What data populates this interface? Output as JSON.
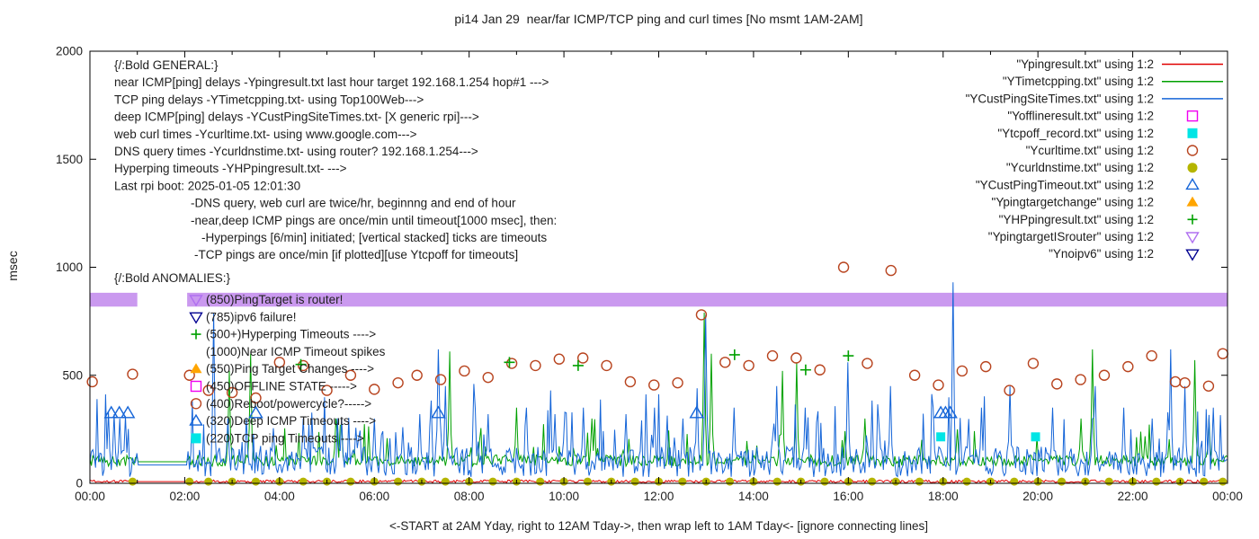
{
  "title": "pi14 Jan 29  near/far ICMP/TCP ping and curl times [No msmt 1AM-2AM]",
  "axes": {
    "ylabel": "msec",
    "xlabel": "<-START at 2AM Yday, right to 12AM Tday->, then wrap left to 1AM Tday<- [ignore connecting lines]",
    "xticks": [
      {
        "h": 0,
        "label": "00:00"
      },
      {
        "h": 2,
        "label": "02:00"
      },
      {
        "h": 4,
        "label": "04:00"
      },
      {
        "h": 6,
        "label": "06:00"
      },
      {
        "h": 8,
        "label": "08:00"
      },
      {
        "h": 10,
        "label": "10:00"
      },
      {
        "h": 12,
        "label": "12:00"
      },
      {
        "h": 14,
        "label": "14:00"
      },
      {
        "h": 16,
        "label": "16:00"
      },
      {
        "h": 18,
        "label": "18:00"
      },
      {
        "h": 20,
        "label": "20:00"
      },
      {
        "h": 22,
        "label": "22:00"
      },
      {
        "h": 24,
        "label": "00:00"
      }
    ],
    "yticks": [
      0,
      500,
      1000,
      1500,
      2000
    ]
  },
  "legend": [
    {
      "label": "\"Ypingresult.txt\" using 1:2",
      "kind": "line",
      "color": "#e00000"
    },
    {
      "label": "\"YTimetcpping.txt\" using 1:2",
      "kind": "line",
      "color": "#00a000"
    },
    {
      "label": "\"YCustPingSiteTimes.txt\" using 1:2",
      "kind": "line",
      "color": "#1565d8"
    },
    {
      "label": "\"Yofflineresult.txt\" using 1:2",
      "kind": "marker",
      "marker": "square-open",
      "color": "#f000f0"
    },
    {
      "label": "\"Ytcpoff_record.txt\" using 1:2",
      "kind": "marker",
      "marker": "square-filled",
      "color": "#00e5e5"
    },
    {
      "label": "\"Ycurltime.txt\" using 1:2",
      "kind": "marker",
      "marker": "circle-open",
      "color": "#b8441f"
    },
    {
      "label": "\"Ycurldnstime.txt\" using 1:2",
      "kind": "marker",
      "marker": "circle-filled",
      "color": "#b5b500"
    },
    {
      "label": "\"YCustPingTimeout.txt\" using 1:2",
      "kind": "marker",
      "marker": "tri-up-open",
      "color": "#1565d8"
    },
    {
      "label": "\"Ypingtargetchange\" using 1:2",
      "kind": "marker",
      "marker": "tri-up-filled",
      "color": "#ffa500"
    },
    {
      "label": "\"YHPpingresult.txt\" using 1:2",
      "kind": "marker",
      "marker": "plus",
      "color": "#00a000"
    },
    {
      "label": "\"YpingtargetISrouter\" using 1:2",
      "kind": "marker",
      "marker": "tri-down-open",
      "color": "#b070f0"
    },
    {
      "label": "\"Ynoipv6\" using 1:2",
      "kind": "marker",
      "marker": "tri-down-open",
      "color": "#000090"
    }
  ],
  "general": {
    "header": "{/:Bold GENERAL:}",
    "lines": [
      {
        "t": "near ICMP[ping] delays -Ypingresult.txt last hour target 192.168.1.254 hop#1 --->",
        "i": 0
      },
      {
        "t": "TCP ping delays -YTimetcpping.txt- using Top100Web--->",
        "i": 0
      },
      {
        "t": "deep ICMP[ping] delays -YCustPingSiteTimes.txt- [X generic rpi]--->",
        "i": 0
      },
      {
        "t": "web curl times -Ycurltime.txt- using www.google.com--->",
        "i": 0
      },
      {
        "t": "DNS query times -Ycurldnstime.txt- using router? 192.168.1.254--->",
        "i": 0
      },
      {
        "t": "Hyperping timeouts -YHPpingresult.txt- --->",
        "i": 0
      },
      {
        "t": "Last rpi boot: 2025-01-05 12:01:30",
        "i": 0
      },
      {
        "t": "-DNS query, web curl are twice/hr, beginnng and end of hour",
        "i": 85
      },
      {
        "t": "-near,deep ICMP pings are once/min until timeout[1000 msec], then:",
        "i": 85
      },
      {
        "t": "-Hyperpings [6/min] initiated; [vertical stacked] ticks are timeouts",
        "i": 97
      },
      {
        "t": "-TCP pings are once/min [if plotted][use Ytcpoff for timeouts]",
        "i": 89
      }
    ]
  },
  "anomalies": {
    "header": "{/:Bold ANOMALIES:}",
    "items": [
      {
        "t": "(850)PingTarget is router!",
        "marker": "tri-down-open",
        "color": "#b070f0"
      },
      {
        "t": "(785)ipv6 failure!",
        "marker": "tri-down-open",
        "color": "#000090"
      },
      {
        "t": "(500+)Hyperping Timeouts ---->",
        "marker": "plus",
        "color": "#00a000"
      },
      {
        "t": "(1000)Near ICMP Timeout spikes",
        "marker": "none",
        "color": "#202020"
      },
      {
        "t": "(550)Ping Target Changes ---->",
        "marker": "tri-up-filled",
        "color": "#ffa500"
      },
      {
        "t": "(450)OFFLINE STATE ----->",
        "marker": "square-open",
        "color": "#f000f0"
      },
      {
        "t": "(400)Reboot/powercycle?----->",
        "marker": "circle-open",
        "color": "#b8441f"
      },
      {
        "t": "(320)Deep ICMP Timeouts ---->",
        "marker": "tri-up-open",
        "color": "#1565d8"
      },
      {
        "t": "(220)TCP ping Timeouts ---->",
        "marker": "square-filled",
        "color": "#00e5e5"
      }
    ]
  },
  "chart_data": {
    "type": "line",
    "title": "pi14 Jan 29  near/far ICMP/TCP ping and curl times [No msmt 1AM-2AM]",
    "xlabel": "<-START at 2AM Yday, right to 12AM Tday->, then wrap left to 1AM Tday<- [ignore connecting lines]",
    "ylabel": "msec",
    "xlim": [
      0,
      24
    ],
    "ylim": [
      0,
      2000
    ],
    "grid": false,
    "legend_position": "top-right",
    "no_measurement_window_hours": [
      1.0,
      2.05
    ],
    "band": {
      "name": "YpingtargetISrouter",
      "y": 850,
      "thickness_msec": 64,
      "segments": [
        [
          0,
          1.0
        ],
        [
          2.05,
          24
        ]
      ],
      "color": "#c794ee"
    },
    "lines": [
      {
        "id": "Ypingresult",
        "color": "#e00000",
        "base": 8,
        "noise": 6,
        "spike_prob": 0,
        "spike_amp": 0,
        "spikes": []
      },
      {
        "id": "YTimetcpping",
        "color": "#00a000",
        "base": 100,
        "noise": 26,
        "spike_prob": 0.05,
        "spike_amp": 130,
        "spikes": [
          [
            2.95,
            520
          ],
          [
            3.4,
            600
          ],
          [
            5.2,
            300
          ],
          [
            7.6,
            610
          ],
          [
            9.0,
            350
          ],
          [
            10.6,
            300
          ],
          [
            12.95,
            790
          ],
          [
            13.1,
            600
          ],
          [
            14.6,
            520
          ],
          [
            14.9,
            560
          ],
          [
            16.35,
            300
          ],
          [
            18.3,
            250
          ],
          [
            20.9,
            300
          ],
          [
            21.15,
            620
          ],
          [
            23.3,
            570
          ],
          [
            23.6,
            300
          ]
        ]
      },
      {
        "id": "YCustPingSiteTimes",
        "color": "#1565d8",
        "base": 85,
        "noise": 70,
        "spike_prob": 0.1,
        "spike_amp": 220,
        "spikes": [
          [
            0.38,
            330
          ],
          [
            0.5,
            320
          ],
          [
            0.62,
            300
          ],
          [
            0.75,
            310
          ],
          [
            2.6,
            790
          ],
          [
            2.9,
            300
          ],
          [
            4.5,
            300
          ],
          [
            5.3,
            300
          ],
          [
            6.0,
            300
          ],
          [
            6.6,
            260
          ],
          [
            6.95,
            320
          ],
          [
            7.35,
            620
          ],
          [
            7.5,
            450
          ],
          [
            8.1,
            460
          ],
          [
            8.4,
            320
          ],
          [
            9.2,
            350
          ],
          [
            9.8,
            320
          ],
          [
            10.4,
            350
          ],
          [
            11.3,
            320
          ],
          [
            11.9,
            350
          ],
          [
            12.5,
            300
          ],
          [
            12.8,
            440
          ],
          [
            13.0,
            780
          ],
          [
            13.6,
            350
          ],
          [
            14.5,
            450
          ],
          [
            15.1,
            350
          ],
          [
            16.0,
            560
          ],
          [
            16.9,
            450
          ],
          [
            17.8,
            350
          ],
          [
            18.2,
            930
          ],
          [
            18.8,
            350
          ],
          [
            19.4,
            450
          ],
          [
            20.3,
            350
          ],
          [
            21.2,
            450
          ],
          [
            21.8,
            350
          ],
          [
            22.4,
            300
          ],
          [
            22.8,
            620
          ],
          [
            23.1,
            450
          ],
          [
            23.7,
            350
          ]
        ]
      }
    ],
    "scatter": [
      {
        "id": "Ycurltime",
        "marker": "circle-open",
        "color": "#b8441f",
        "size": 5.5,
        "points": [
          [
            0.05,
            470
          ],
          [
            0.9,
            505
          ],
          [
            2.1,
            500
          ],
          [
            2.5,
            430
          ],
          [
            3.0,
            420
          ],
          [
            3.5,
            395
          ],
          [
            4.0,
            560
          ],
          [
            4.5,
            545
          ],
          [
            5.0,
            430
          ],
          [
            5.5,
            500
          ],
          [
            6.0,
            435
          ],
          [
            6.5,
            465
          ],
          [
            6.9,
            500
          ],
          [
            7.4,
            480
          ],
          [
            7.9,
            520
          ],
          [
            8.4,
            490
          ],
          [
            8.9,
            555
          ],
          [
            9.4,
            545
          ],
          [
            9.9,
            575
          ],
          [
            10.4,
            580
          ],
          [
            10.9,
            545
          ],
          [
            11.4,
            470
          ],
          [
            11.9,
            455
          ],
          [
            12.4,
            465
          ],
          [
            12.9,
            780
          ],
          [
            13.4,
            560
          ],
          [
            13.9,
            545
          ],
          [
            14.4,
            590
          ],
          [
            14.9,
            580
          ],
          [
            15.4,
            525
          ],
          [
            15.9,
            1000
          ],
          [
            16.4,
            555
          ],
          [
            16.9,
            985
          ],
          [
            17.4,
            500
          ],
          [
            17.9,
            455
          ],
          [
            18.4,
            520
          ],
          [
            18.9,
            540
          ],
          [
            19.4,
            430
          ],
          [
            19.9,
            555
          ],
          [
            20.4,
            460
          ],
          [
            20.9,
            480
          ],
          [
            21.4,
            500
          ],
          [
            21.9,
            540
          ],
          [
            22.4,
            590
          ],
          [
            22.9,
            470
          ],
          [
            23.1,
            465
          ],
          [
            23.6,
            450
          ],
          [
            23.9,
            600
          ]
        ]
      },
      {
        "id": "Ycurldnstime",
        "marker": "circle-filled",
        "color": "#b5b500",
        "size": 4.5,
        "y": 8,
        "xs": [
          0.9,
          2.1,
          2.5,
          3.0,
          3.5,
          4.0,
          4.5,
          5.0,
          5.5,
          6.0,
          6.5,
          7.0,
          7.5,
          8.0,
          8.5,
          9.0,
          9.5,
          10.0,
          10.5,
          11.0,
          11.5,
          12.0,
          12.5,
          13.0,
          13.5,
          14.0,
          14.5,
          15.0,
          15.5,
          16.0,
          16.5,
          17.0,
          17.5,
          18.0,
          18.5,
          19.0,
          19.5,
          20.0,
          20.5,
          21.0,
          21.5,
          22.0,
          22.5,
          23.0,
          23.5,
          23.9
        ]
      },
      {
        "id": "YCustPingTimeout",
        "marker": "tri-up-open",
        "color": "#1565d8",
        "size": 6,
        "y": 325,
        "xs": [
          0.45,
          0.62,
          0.8,
          3.5,
          7.35,
          12.8,
          17.95,
          18.05,
          18.15
        ]
      },
      {
        "id": "Ytcpoff_record",
        "marker": "square-filled",
        "color": "#00e5e5",
        "size": 5,
        "points": [
          [
            17.95,
            215
          ],
          [
            19.95,
            215
          ]
        ]
      },
      {
        "id": "YHPpingresult",
        "marker": "plus",
        "color": "#00a000",
        "size": 6,
        "points": [
          [
            4.45,
            550
          ],
          [
            8.85,
            560
          ],
          [
            10.3,
            545
          ],
          [
            13.6,
            595
          ],
          [
            15.1,
            525
          ],
          [
            16.0,
            590
          ]
        ]
      },
      {
        "id": "Yofflineresult",
        "marker": "square-open",
        "color": "#f000f0",
        "size": 4.5,
        "points": []
      },
      {
        "id": "Ypingtargetchange",
        "marker": "tri-up-filled",
        "color": "#ffa500",
        "size": 6,
        "points": []
      },
      {
        "id": "Ynoipv6",
        "marker": "tri-down-open",
        "color": "#000090",
        "size": 6,
        "points": []
      }
    ]
  }
}
